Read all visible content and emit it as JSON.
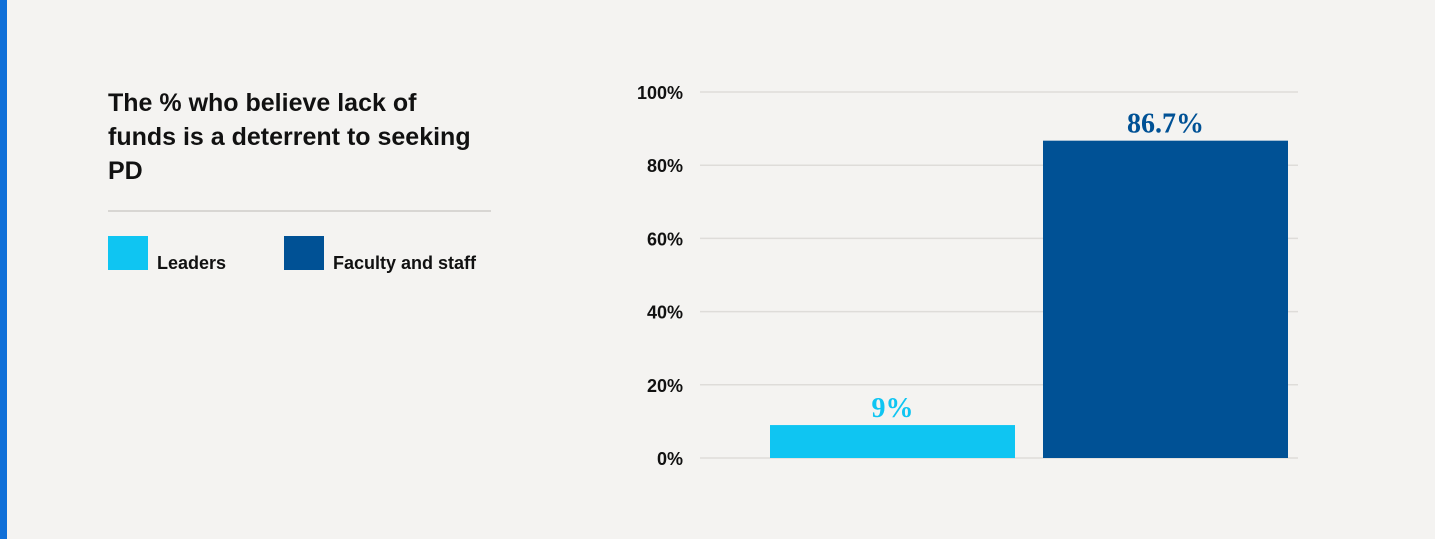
{
  "colors": {
    "accent": "#0f6fd8",
    "leaders": "#0fc5f2",
    "faculty": "#005195",
    "grid": "#dedcd9",
    "background": "#f4f3f1"
  },
  "legend": [
    {
      "label": "Leaders",
      "color": "#0fc5f2"
    },
    {
      "label": "Faculty and staff",
      "color": "#005195"
    }
  ],
  "chart_data": {
    "type": "bar",
    "title": "The % who believe lack of funds is a deterrent to seeking PD",
    "categories": [
      "Leaders",
      "Faculty and staff"
    ],
    "values": [
      9,
      86.7
    ],
    "data_labels": [
      "9%",
      "86.7%"
    ],
    "colors": [
      "#0fc5f2",
      "#005195"
    ],
    "ylim": [
      0,
      100
    ],
    "yticks": [
      0,
      20,
      40,
      60,
      80,
      100
    ],
    "ytick_labels": [
      "0%",
      "20%",
      "40%",
      "60%",
      "80%",
      "100%"
    ],
    "xlabel": "",
    "ylabel": "",
    "grid": true,
    "legend_position": "left"
  }
}
